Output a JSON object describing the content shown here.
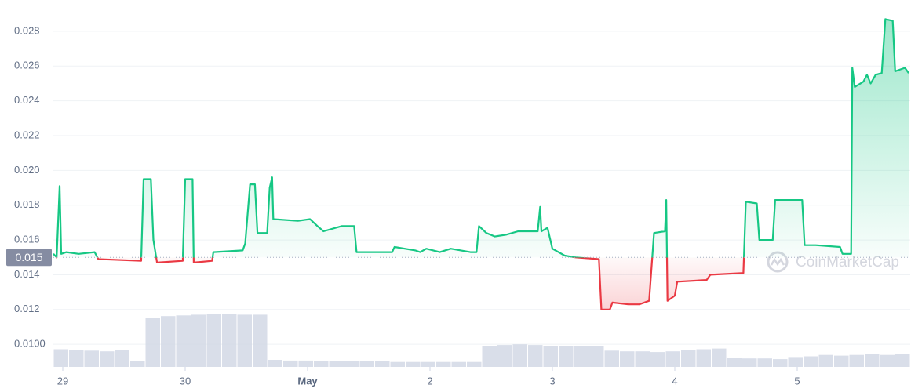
{
  "chart_data": {
    "type": "line",
    "x": [
      -0.077,
      -0.05,
      -0.026,
      -0.013,
      0.03,
      0.13,
      0.26,
      0.29,
      0.64,
      0.66,
      0.72,
      0.74,
      0.77,
      0.98,
      1.0,
      1.06,
      1.07,
      1.22,
      1.23,
      1.47,
      1.49,
      1.53,
      1.57,
      1.59,
      1.67,
      1.69,
      1.71,
      1.72,
      1.92,
      2.02,
      2.08,
      2.13,
      2.28,
      2.38,
      2.4,
      2.69,
      2.71,
      2.88,
      2.92,
      2.97,
      3.08,
      3.17,
      3.33,
      3.38,
      3.4,
      3.46,
      3.53,
      3.62,
      3.72,
      3.88,
      3.9,
      3.91,
      3.96,
      4.0,
      4.1,
      4.19,
      4.38,
      4.4,
      4.47,
      4.49,
      4.62,
      4.71,
      4.79,
      4.83,
      4.92,
      4.93,
      4.94,
      5.0,
      5.02,
      5.26,
      5.29,
      5.56,
      5.58,
      5.67,
      5.69,
      5.8,
      5.82,
      6.04,
      6.06,
      6.15,
      6.35,
      6.37,
      6.44,
      6.45,
      6.47,
      6.54,
      6.57,
      6.6,
      6.64,
      6.69,
      6.72,
      6.78,
      6.8,
      6.88,
      6.91
    ],
    "series": [
      {
        "values": [
          0.0152,
          0.015,
          0.0191,
          0.0152,
          0.0153,
          0.0152,
          0.0153,
          0.0149,
          0.0148,
          0.0195,
          0.0195,
          0.016,
          0.0147,
          0.0148,
          0.0195,
          0.0195,
          0.0147,
          0.0148,
          0.0153,
          0.0154,
          0.0158,
          0.0192,
          0.0192,
          0.0164,
          0.0164,
          0.019,
          0.0196,
          0.0172,
          0.0171,
          0.0172,
          0.0168,
          0.0165,
          0.0168,
          0.0168,
          0.0153,
          0.0153,
          0.0156,
          0.0154,
          0.0153,
          0.0155,
          0.0153,
          0.0155,
          0.0153,
          0.0153,
          0.0168,
          0.0164,
          0.0162,
          0.0163,
          0.0165,
          0.0165,
          0.0179,
          0.0165,
          0.0167,
          0.0155,
          0.0151,
          0.015,
          0.0149,
          0.012,
          0.012,
          0.0124,
          0.0123,
          0.0123,
          0.0125,
          0.0164,
          0.0165,
          0.0183,
          0.0125,
          0.0128,
          0.0136,
          0.0137,
          0.014,
          0.0141,
          0.0182,
          0.0181,
          0.016,
          0.016,
          0.0183,
          0.0183,
          0.0157,
          0.0157,
          0.0156,
          0.0152,
          0.0152,
          0.0259,
          0.0248,
          0.0251,
          0.0255,
          0.025,
          0.0255,
          0.0256,
          0.0287,
          0.0286,
          0.0257,
          0.0259,
          0.0256
        ]
      }
    ],
    "baseline": 0.015,
    "up_color": "#16c784",
    "down_color": "#ea3943",
    "volume": {
      "color": "#cfd6e4",
      "values": [
        25,
        24,
        23,
        22,
        24,
        8,
        70,
        72,
        73,
        74,
        75,
        75,
        74,
        74,
        10,
        9,
        9,
        8,
        8,
        8,
        8,
        8,
        7,
        7,
        7,
        7,
        7,
        7,
        30,
        31,
        32,
        31,
        30,
        30,
        30,
        30,
        23,
        22,
        22,
        21,
        22,
        24,
        25,
        26,
        13,
        12,
        12,
        11,
        14,
        15,
        17,
        16,
        17,
        18,
        17,
        18
      ],
      "ylim": [
        0,
        100
      ]
    },
    "xlim": [
      -0.077,
      6.923
    ],
    "ylim": [
      0.0087,
      0.0298
    ],
    "xticks": [
      {
        "value": 0,
        "label": "29"
      },
      {
        "value": 1,
        "label": "30"
      },
      {
        "value": 2,
        "label": "May"
      },
      {
        "value": 3,
        "label": "2"
      },
      {
        "value": 4,
        "label": "3"
      },
      {
        "value": 5,
        "label": "4"
      },
      {
        "value": 6,
        "label": "5"
      }
    ],
    "yticks": [
      {
        "value": 0.01,
        "label": "0.0100"
      },
      0.012,
      0.014,
      0.016,
      0.018,
      {
        "value": 0.02,
        "label": "0.020"
      },
      0.022,
      0.024,
      0.026,
      0.028
    ],
    "grid": true,
    "watermark": "CoinMarketCap"
  }
}
